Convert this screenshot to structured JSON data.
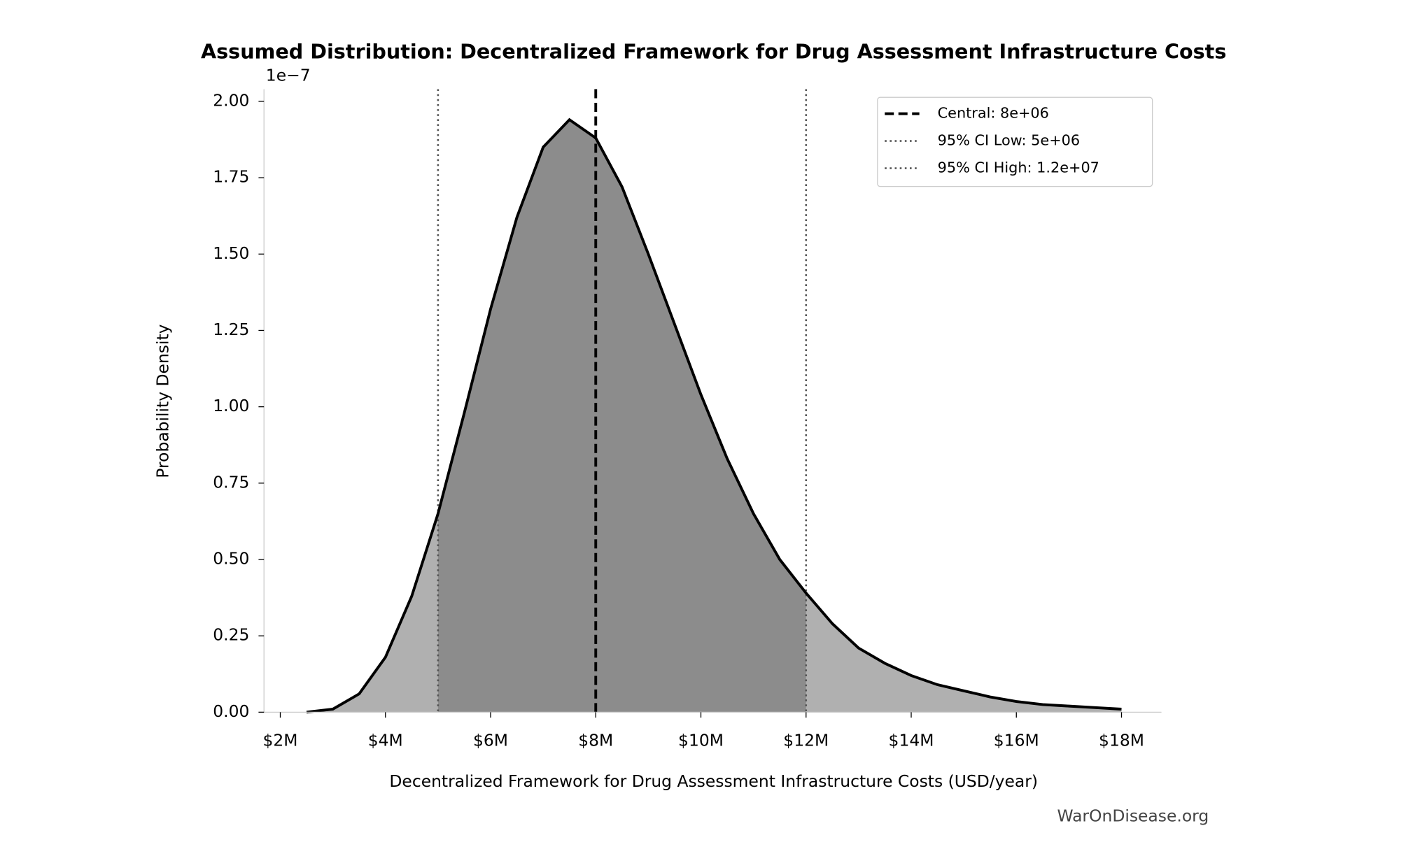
{
  "chart_data": {
    "type": "density",
    "title": "Assumed Distribution: Decentralized Framework for Drug Assessment Infrastructure Costs",
    "x_label": "Decentralized Framework for Drug Assessment Infrastructure Costs (USD/year)",
    "y_label": "Probability Density",
    "y_offset_label": "1e−7",
    "watermark": "WarOnDisease.org",
    "x": [
      2500000,
      3000000,
      3500000,
      4000000,
      4500000,
      5000000,
      5500000,
      6000000,
      6500000,
      7000000,
      7500000,
      8000000,
      8500000,
      9000000,
      9500000,
      10000000,
      10500000,
      11000000,
      11500000,
      12000000,
      12500000,
      13000000,
      13500000,
      14000000,
      14500000,
      15000000,
      15500000,
      16000000,
      16500000,
      17000000,
      17500000,
      18000000
    ],
    "values": [
      0.0,
      0.01,
      0.06,
      0.18,
      0.38,
      0.65,
      0.98,
      1.32,
      1.62,
      1.85,
      1.94,
      1.88,
      1.72,
      1.5,
      1.27,
      1.04,
      0.83,
      0.65,
      0.5,
      0.39,
      0.29,
      0.21,
      0.16,
      0.12,
      0.09,
      0.07,
      0.05,
      0.035,
      0.025,
      0.02,
      0.015,
      0.01
    ],
    "color": "#000000",
    "fill_color": "#b0b0b0",
    "ci_fill_color": "#8c8c8c",
    "lines": [
      {
        "name": "Central: 8e+06",
        "value": 8000000,
        "style": "dashed",
        "color": "#000000"
      },
      {
        "name": "95% CI Low: 5e+06",
        "value": 5000000,
        "style": "dotted",
        "color": "#555555"
      },
      {
        "name": "95% CI High: 1.2e+07",
        "value": 12000000,
        "style": "dotted",
        "color": "#555555"
      }
    ],
    "xlim": [
      1690000,
      18760000
    ],
    "ylim": [
      0,
      2.04
    ],
    "xticks": [
      {
        "value": 2000000,
        "label": "$2M"
      },
      {
        "value": 4000000,
        "label": "$4M"
      },
      {
        "value": 6000000,
        "label": "$6M"
      },
      {
        "value": 8000000,
        "label": "$8M"
      },
      {
        "value": 10000000,
        "label": "$10M"
      },
      {
        "value": 12000000,
        "label": "$12M"
      },
      {
        "value": 14000000,
        "label": "$14M"
      },
      {
        "value": 16000000,
        "label": "$16M"
      },
      {
        "value": 18000000,
        "label": "$18M"
      }
    ],
    "yticks": [
      {
        "value": 0,
        "label": "0.00"
      },
      0.25,
      {
        "value": 0.5,
        "label": "0.50"
      },
      0.75,
      {
        "value": 1,
        "label": "1.00"
      },
      1.25,
      {
        "value": 1.5,
        "label": "1.50"
      },
      1.75,
      {
        "value": 2,
        "label": "2.00"
      }
    ],
    "legend": "upper right",
    "grid": false
  }
}
